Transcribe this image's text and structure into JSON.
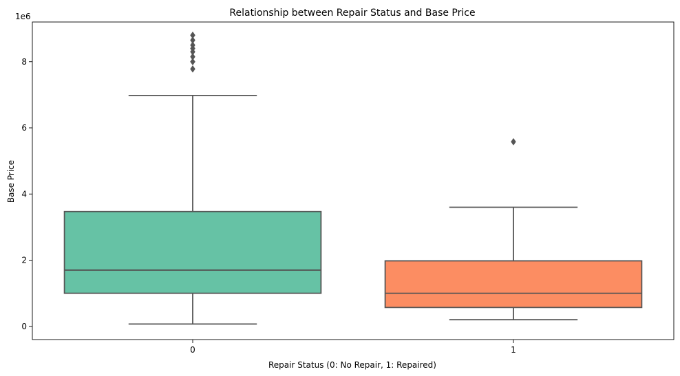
{
  "chart_data": {
    "type": "box",
    "title": "Relationship between Repair Status and Base Price",
    "xlabel": "Repair Status (0: No Repair, 1: Repaired)",
    "ylabel": "Base Price",
    "y_scale_label": "1e6",
    "ylim": [
      -0.4,
      9.2
    ],
    "yticks": [
      0,
      2,
      4,
      6,
      8
    ],
    "ytick_labels": [
      "0",
      "2",
      "4",
      "6",
      "8"
    ],
    "categories": [
      "0",
      "1"
    ],
    "series": [
      {
        "name": "0",
        "color": "#66c2a5",
        "whisker_low": 0.07,
        "q1": 1.0,
        "median": 1.7,
        "q3": 3.47,
        "whisker_high": 6.98,
        "outliers": [
          7.78,
          8.0,
          8.15,
          8.3,
          8.4,
          8.5,
          8.65,
          8.8
        ]
      },
      {
        "name": "1",
        "color": "#fc8d62",
        "whisker_low": 0.2,
        "q1": 0.57,
        "median": 1.0,
        "q3": 1.98,
        "whisker_high": 3.6,
        "outliers": [
          5.58
        ]
      }
    ],
    "grid": false
  }
}
